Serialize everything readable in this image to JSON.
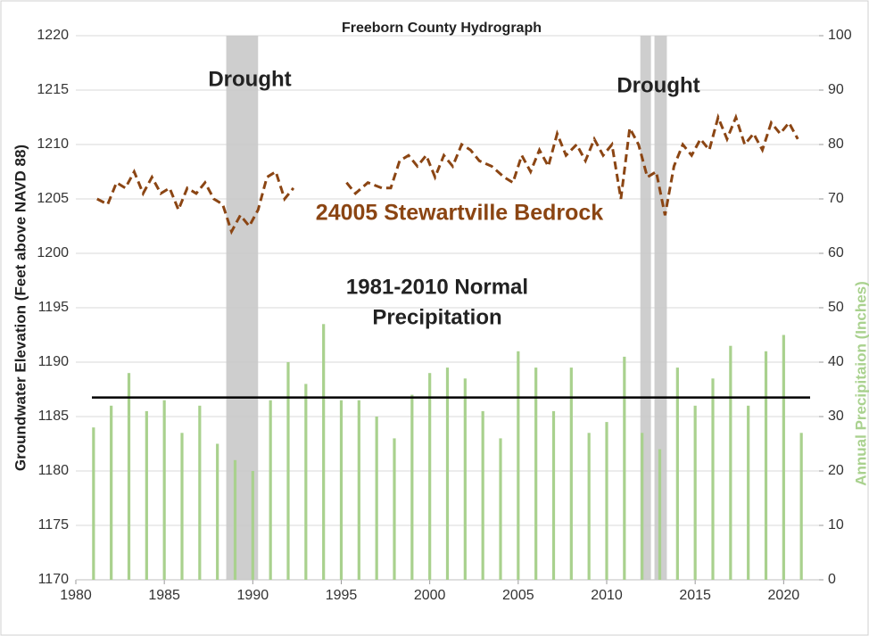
{
  "chart_data": {
    "type": "combo",
    "title": "Freeborn County Hydrograph",
    "y_label": "Groundwater Elevation (Feet above NAVD 88)",
    "y2_label": "Annual Precipitaion (Inches)",
    "xlim": [
      1980,
      2022
    ],
    "xticks": [
      1980,
      1985,
      1990,
      1995,
      2000,
      2005,
      2010,
      2015,
      2020
    ],
    "ylim": [
      1170,
      1220
    ],
    "yticks": [
      1170,
      1175,
      1180,
      1185,
      1190,
      1195,
      1200,
      1205,
      1210,
      1215,
      1220
    ],
    "y2lim": [
      0,
      100
    ],
    "y2ticks": [
      0,
      10,
      20,
      30,
      40,
      50,
      60,
      70,
      80,
      90,
      100
    ],
    "grid": true,
    "shaded_ranges": [
      {
        "label": "Drought",
        "x": [
          1988.5,
          1990.3
        ]
      },
      {
        "x": [
          2011.9,
          2012.5
        ]
      },
      {
        "label": "Drought",
        "x": [
          2012.7,
          2013.4
        ]
      }
    ],
    "reference_lines": [
      {
        "label": [
          "1981-2010 Normal",
          "Precipitation"
        ],
        "value": 33.5,
        "axis": "y2",
        "color": "#000000"
      }
    ],
    "series": [
      {
        "type": "bar",
        "axis": "y2",
        "color": "#a9d18e",
        "x": [
          1981,
          1982,
          1983,
          1984,
          1985,
          1986,
          1987,
          1988,
          1989,
          1990,
          1991,
          1992,
          1993,
          1994,
          1995,
          1996,
          1997,
          1998,
          1999,
          2000,
          2001,
          2002,
          2003,
          2004,
          2005,
          2006,
          2007,
          2008,
          2009,
          2010,
          2011,
          2012,
          2013,
          2014,
          2015,
          2016,
          2017,
          2018,
          2019,
          2020,
          2021
        ],
        "values": [
          28,
          32,
          38,
          31,
          33,
          27,
          32,
          25,
          22,
          20,
          33,
          40,
          36,
          47,
          33,
          33,
          30,
          26,
          34,
          38,
          39,
          37,
          31,
          26,
          42,
          39,
          31,
          39,
          27,
          29,
          41,
          27,
          24,
          39,
          32,
          37,
          43,
          32,
          42,
          45,
          27
        ]
      },
      {
        "type": "line",
        "name": "24005 Stewartville Bedrock",
        "color": "#8b4513",
        "dashed": true,
        "x": [
          1981.2,
          1981.8,
          1982.3,
          1982.8,
          1983.3,
          1983.8,
          1984.3,
          1984.8,
          1985.3,
          1985.8,
          1986.3,
          1986.8,
          1987.3,
          1987.8,
          1988.3,
          1988.8,
          1989.3,
          1989.8,
          1990.3,
          1990.8,
          1991.3,
          1991.8,
          1992.3,
          1993.8,
          1995.3,
          1995.8,
          1996.5,
          1997.3,
          1997.8,
          1998.3,
          1998.8,
          1999.3,
          1999.8,
          2000.3,
          2000.8,
          2001.3,
          2001.8,
          2002.3,
          2002.8,
          2003.5,
          2004.2,
          2004.7,
          2005.2,
          2005.7,
          2006.2,
          2006.7,
          2007.2,
          2007.7,
          2008.3,
          2008.8,
          2009.3,
          2009.8,
          2010.3,
          2010.8,
          2011.3,
          2011.8,
          2012.3,
          2012.8,
          2013.3,
          2013.8,
          2014.3,
          2014.8,
          2015.3,
          2015.8,
          2016.3,
          2016.8,
          2017.3,
          2017.8,
          2018.3,
          2018.8,
          2019.3,
          2019.8,
          2020.3,
          2020.8
        ],
        "values": [
          1205,
          1204.5,
          1206.5,
          1206,
          1207.5,
          1205.5,
          1207,
          1205.5,
          1206,
          1204,
          1206,
          1205.5,
          1206.5,
          1205,
          1204.5,
          1202,
          1203.5,
          1202.5,
          1204,
          1207,
          1207.5,
          1205,
          1206,
          null,
          1206.5,
          1205.5,
          1206.5,
          1206,
          1206,
          1208.5,
          1209,
          1208,
          1209,
          1207,
          1209,
          1208,
          1210,
          1209.5,
          1208.5,
          1208,
          1207,
          1206.5,
          1209,
          1207.5,
          1209.5,
          1208,
          1211,
          1209,
          1210,
          1208.5,
          1210.5,
          1209,
          1210,
          1205,
          1211.5,
          1210,
          1207,
          1207.5,
          1203.5,
          1208,
          1210,
          1209,
          1210.5,
          1209.5,
          1212.5,
          1210.5,
          1212.5,
          1210,
          1211,
          1209.5,
          1212,
          1211,
          1212,
          1210.5
        ]
      }
    ]
  }
}
